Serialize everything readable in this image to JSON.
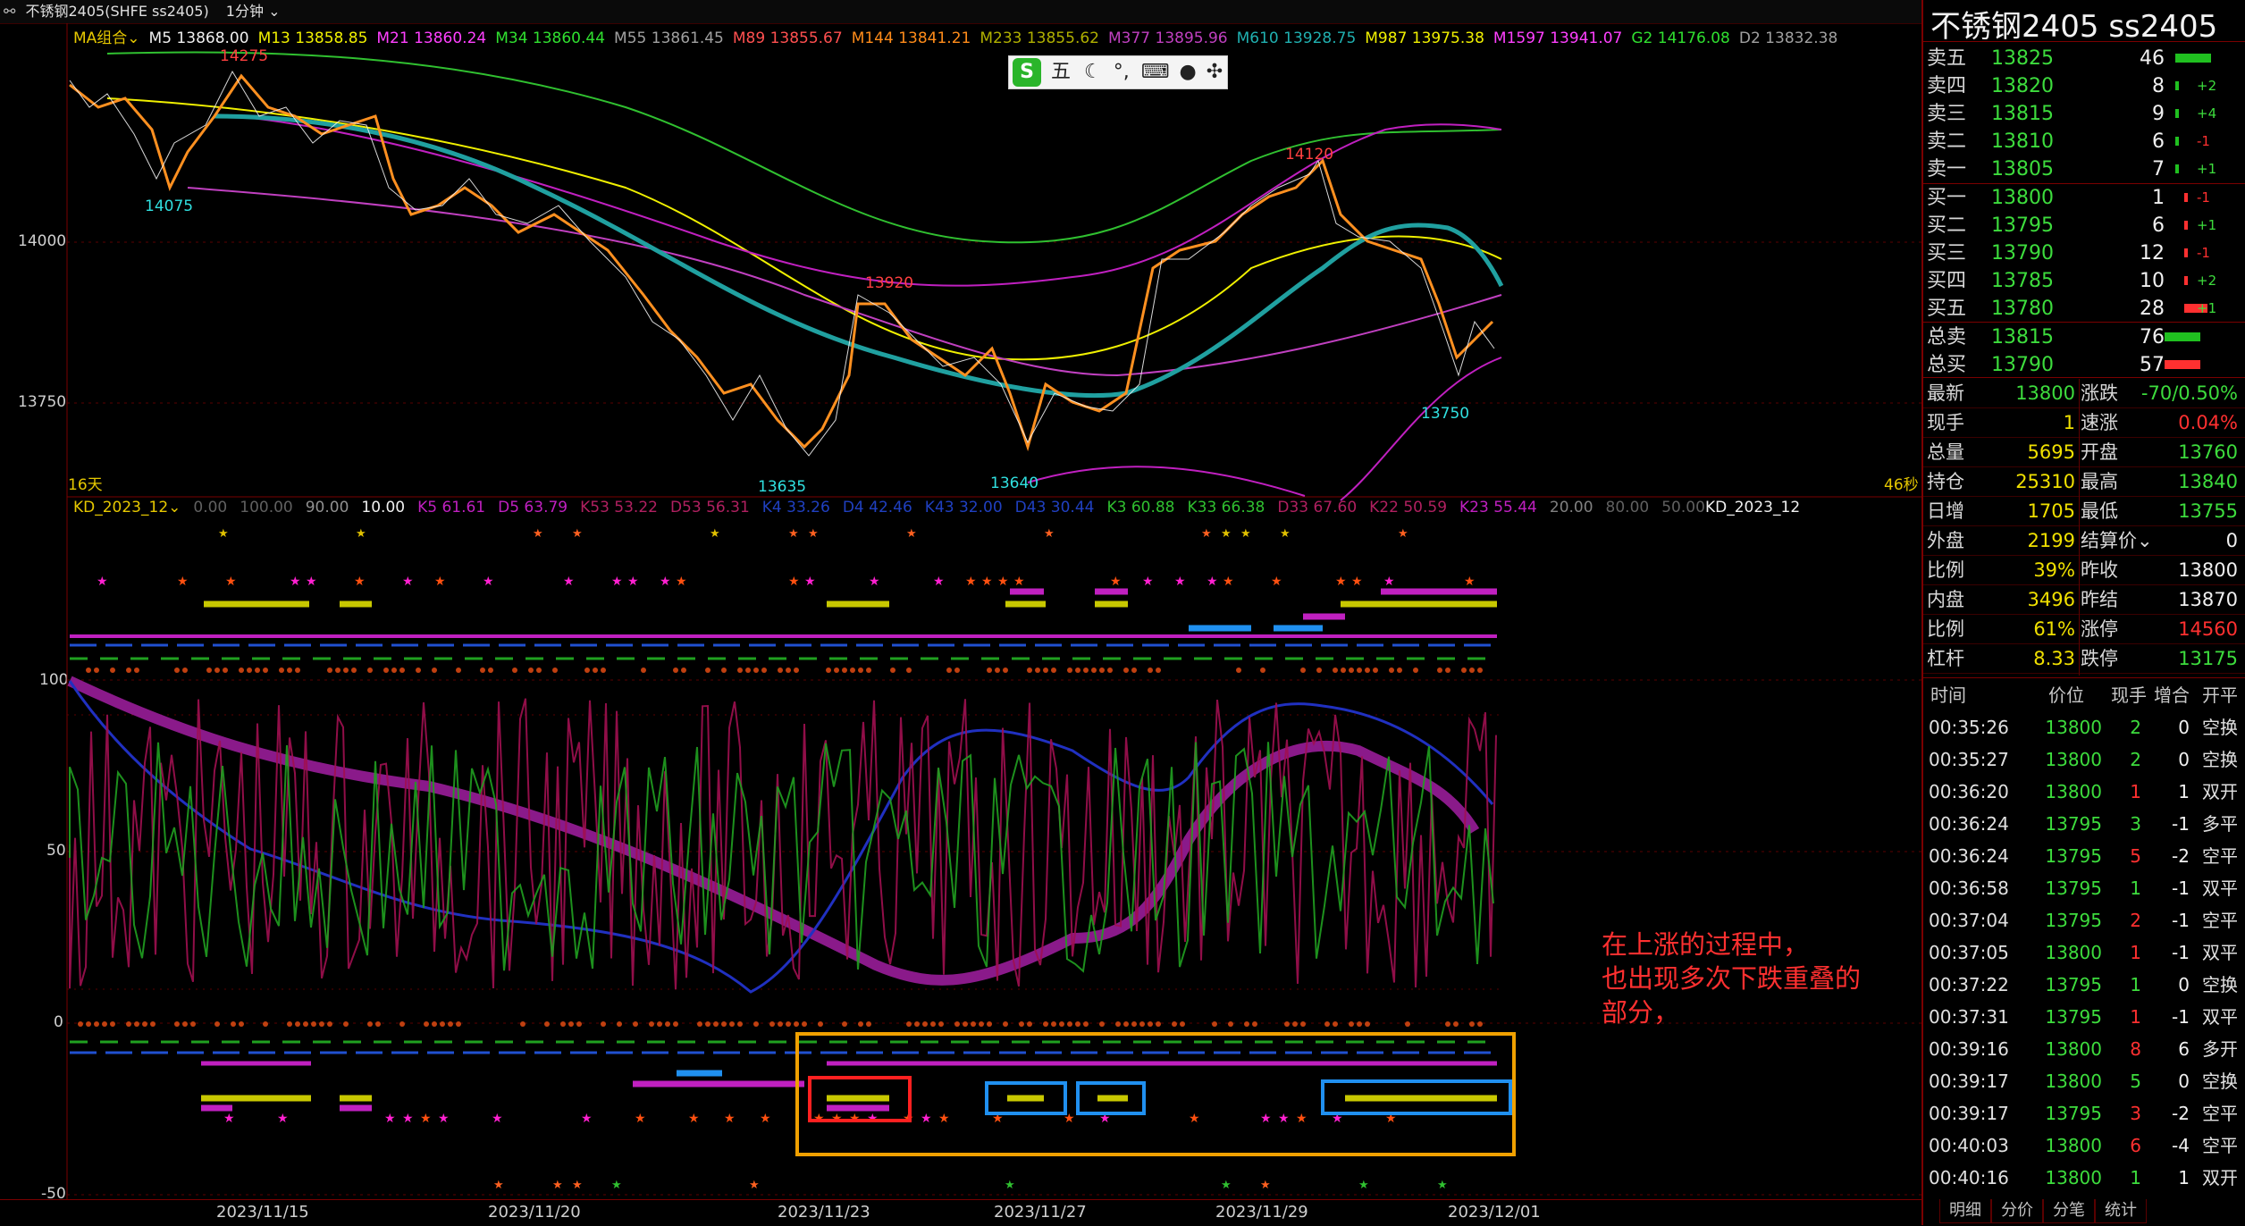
{
  "titlebar": {
    "symbol": "不锈钢2405(SHFE ss2405)",
    "period": "1分钟"
  },
  "ma_legend": [
    {
      "label": "MA组合",
      "color": "#e6c800"
    },
    {
      "label": "M5 13868.00",
      "color": "#f0f0f0"
    },
    {
      "label": "M13 13858.85",
      "color": "#f0f000"
    },
    {
      "label": "M21 13860.24",
      "color": "#ff40ff"
    },
    {
      "label": "M34 13860.44",
      "color": "#30e030"
    },
    {
      "label": "M55 13861.45",
      "color": "#a0a0a0"
    },
    {
      "label": "M89 13855.67",
      "color": "#ff5050"
    },
    {
      "label": "M144 13841.21",
      "color": "#ff8c1a"
    },
    {
      "label": "M233 13855.62",
      "color": "#b0b000"
    },
    {
      "label": "M377 13895.96",
      "color": "#c040c0"
    },
    {
      "label": "M610 13928.75",
      "color": "#20b0b0"
    },
    {
      "label": "M987 13975.38",
      "color": "#f0f000"
    },
    {
      "label": "M1597 13941.07",
      "color": "#ff40ff"
    },
    {
      "label": "G2 14176.08",
      "color": "#30e030"
    },
    {
      "label": "D2 13832.38",
      "color": "#a0a0a0"
    }
  ],
  "price_axis": [
    "14000",
    "13750"
  ],
  "price_annotations": {
    "high1": "14275",
    "low1": "14075",
    "mid1": "13920",
    "low2": "13635",
    "low3": "13640",
    "high2": "14120",
    "low4": "13750"
  },
  "days_label": "16天",
  "seconds_label": "46秒",
  "kd_legend": [
    {
      "label": "KD_2023_12",
      "color": "#e6c800"
    },
    {
      "label": "0.00",
      "color": "#606060"
    },
    {
      "label": "100.00",
      "color": "#606060"
    },
    {
      "label": "90.00",
      "color": "#909090"
    },
    {
      "label": "10.00",
      "color": "#f0f0f0"
    },
    {
      "label": "K5 61.61",
      "color": "#c020c0"
    },
    {
      "label": "D5 63.79",
      "color": "#c020c0"
    },
    {
      "label": "K53 53.22",
      "color": "#b02060"
    },
    {
      "label": "D53 56.31",
      "color": "#b02060"
    },
    {
      "label": "K4 33.26",
      "color": "#2040c0"
    },
    {
      "label": "D4 42.46",
      "color": "#2040c0"
    },
    {
      "label": "K43 32.00",
      "color": "#2040c0"
    },
    {
      "label": "D43 30.44",
      "color": "#2040c0"
    },
    {
      "label": "K3 60.88",
      "color": "#30c030"
    },
    {
      "label": "K33 66.38",
      "color": "#30c030"
    },
    {
      "label": "D33 67.60",
      "color": "#b02060"
    },
    {
      "label": "K22 50.59",
      "color": "#b02060"
    },
    {
      "label": "K23 55.44",
      "color": "#c020c0"
    },
    {
      "label": "20.00",
      "color": "#808080"
    },
    {
      "label": "80.00",
      "color": "#606060"
    },
    {
      "label": "50.00",
      "color": "#606060"
    }
  ],
  "kd_right_label": "KD_2023_12",
  "osc_axis": [
    "100",
    "50",
    "0",
    "-50"
  ],
  "dates": [
    "2023/11/15",
    "2023/11/20",
    "2023/11/23",
    "2023/11/27",
    "2023/11/29",
    "2023/12/01"
  ],
  "note": [
    "在上涨的过程中，",
    "也出现多次下跌重叠的",
    "部分，"
  ],
  "right_panel": {
    "title": "不锈钢2405  ss2405",
    "asks": [
      {
        "label": "卖五",
        "price": "13825",
        "qty": "46",
        "chg": ""
      },
      {
        "label": "卖四",
        "price": "13820",
        "qty": "8",
        "chg": "+2"
      },
      {
        "label": "卖三",
        "price": "13815",
        "qty": "9",
        "chg": "+4"
      },
      {
        "label": "卖二",
        "price": "13810",
        "qty": "6",
        "chg": "-1"
      },
      {
        "label": "卖一",
        "price": "13805",
        "qty": "7",
        "chg": "+1"
      }
    ],
    "bids": [
      {
        "label": "买一",
        "price": "13800",
        "qty": "1",
        "chg": "-1"
      },
      {
        "label": "买二",
        "price": "13795",
        "qty": "6",
        "chg": "+1"
      },
      {
        "label": "买三",
        "price": "13790",
        "qty": "12",
        "chg": "-1"
      },
      {
        "label": "买四",
        "price": "13785",
        "qty": "10",
        "chg": "+2"
      },
      {
        "label": "买五",
        "price": "13780",
        "qty": "28",
        "chg": "+1"
      }
    ],
    "totals": [
      {
        "label": "总卖",
        "price": "13815",
        "qty": "76"
      },
      {
        "label": "总买",
        "price": "13790",
        "qty": "57"
      }
    ],
    "stats": [
      {
        "l1": "最新",
        "v1": "13800",
        "c1": "#3ddc3d",
        "l2": "涨跌",
        "v2": "-70/0.50%",
        "c2": "#3ddc3d"
      },
      {
        "l1": "现手",
        "v1": "1",
        "c1": "#f0e000",
        "l2": "速涨",
        "v2": "0.04%",
        "c2": "#ff3030"
      },
      {
        "l1": "总量",
        "v1": "5695",
        "c1": "#f0e000",
        "l2": "开盘",
        "v2": "13760",
        "c2": "#3ddc3d"
      },
      {
        "l1": "持仓",
        "v1": "25310",
        "c1": "#f0e000",
        "l2": "最高",
        "v2": "13840",
        "c2": "#3ddc3d"
      },
      {
        "l1": "日增",
        "v1": "1705",
        "c1": "#f0e000",
        "l2": "最低",
        "v2": "13755",
        "c2": "#3ddc3d"
      },
      {
        "l1": "外盘",
        "v1": "2199",
        "c1": "#f0e000",
        "l2": "结算价",
        "v2": "0",
        "c2": "#f0f0f0"
      },
      {
        "l1": "比例",
        "v1": "39%",
        "c1": "#f0e000",
        "l2": "昨收",
        "v2": "13800",
        "c2": "#f0f0f0"
      },
      {
        "l1": "内盘",
        "v1": "3496",
        "c1": "#f0e000",
        "l2": "昨结",
        "v2": "13870",
        "c2": "#f0f0f0"
      },
      {
        "l1": "比例",
        "v1": "61%",
        "c1": "#f0e000",
        "l2": "涨停",
        "v2": "14560",
        "c2": "#ff3030"
      },
      {
        "l1": "杠杆",
        "v1": "8.33",
        "c1": "#f0e000",
        "l2": "跌停",
        "v2": "13175",
        "c2": "#3ddc3d"
      }
    ],
    "trade_header": {
      "time": "时间",
      "price": "价位",
      "vol": "现手",
      "oi": "增合",
      "type": "开平"
    },
    "trades": [
      {
        "time": "00:35:26",
        "price": "13800",
        "pc": "#3ddc3d",
        "vol": "2",
        "vc": "#3ddc3d",
        "oi": "0",
        "type": "空换"
      },
      {
        "time": "00:35:27",
        "price": "13800",
        "pc": "#3ddc3d",
        "vol": "2",
        "vc": "#3ddc3d",
        "oi": "0",
        "type": "空换"
      },
      {
        "time": "00:36:20",
        "price": "13800",
        "pc": "#3ddc3d",
        "vol": "1",
        "vc": "#ff3030",
        "oi": "1",
        "type": "双开"
      },
      {
        "time": "00:36:24",
        "price": "13795",
        "pc": "#3ddc3d",
        "vol": "3",
        "vc": "#3ddc3d",
        "oi": "-1",
        "type": "多平"
      },
      {
        "time": "00:36:24",
        "price": "13795",
        "pc": "#3ddc3d",
        "vol": "5",
        "vc": "#ff3030",
        "oi": "-2",
        "type": "空平"
      },
      {
        "time": "00:36:58",
        "price": "13795",
        "pc": "#3ddc3d",
        "vol": "1",
        "vc": "#3ddc3d",
        "oi": "-1",
        "type": "双平"
      },
      {
        "time": "00:37:04",
        "price": "13795",
        "pc": "#3ddc3d",
        "vol": "2",
        "vc": "#ff3030",
        "oi": "-1",
        "type": "空平"
      },
      {
        "time": "00:37:05",
        "price": "13800",
        "pc": "#3ddc3d",
        "vol": "1",
        "vc": "#ff3030",
        "oi": "-1",
        "type": "双平"
      },
      {
        "time": "00:37:22",
        "price": "13795",
        "pc": "#3ddc3d",
        "vol": "1",
        "vc": "#3ddc3d",
        "oi": "0",
        "type": "空换"
      },
      {
        "time": "00:37:31",
        "price": "13795",
        "pc": "#3ddc3d",
        "vol": "1",
        "vc": "#ff3030",
        "oi": "-1",
        "type": "双平"
      },
      {
        "time": "00:39:16",
        "price": "13800",
        "pc": "#3ddc3d",
        "vol": "8",
        "vc": "#ff3030",
        "oi": "6",
        "type": "多开"
      },
      {
        "time": "00:39:17",
        "price": "13800",
        "pc": "#3ddc3d",
        "vol": "5",
        "vc": "#3ddc3d",
        "oi": "0",
        "type": "空换"
      },
      {
        "time": "00:39:17",
        "price": "13795",
        "pc": "#3ddc3d",
        "vol": "3",
        "vc": "#ff3030",
        "oi": "-2",
        "type": "空平"
      },
      {
        "time": "00:40:03",
        "price": "13800",
        "pc": "#3ddc3d",
        "vol": "6",
        "vc": "#ff3030",
        "oi": "-4",
        "type": "空平"
      },
      {
        "time": "00:40:16",
        "price": "13800",
        "pc": "#3ddc3d",
        "vol": "1",
        "vc": "#3ddc3d",
        "oi": "1",
        "type": "双开"
      }
    ],
    "tabs": [
      "明细",
      "分价",
      "分笔",
      "统计"
    ]
  },
  "ime_bar": {
    "mode": "五"
  }
}
